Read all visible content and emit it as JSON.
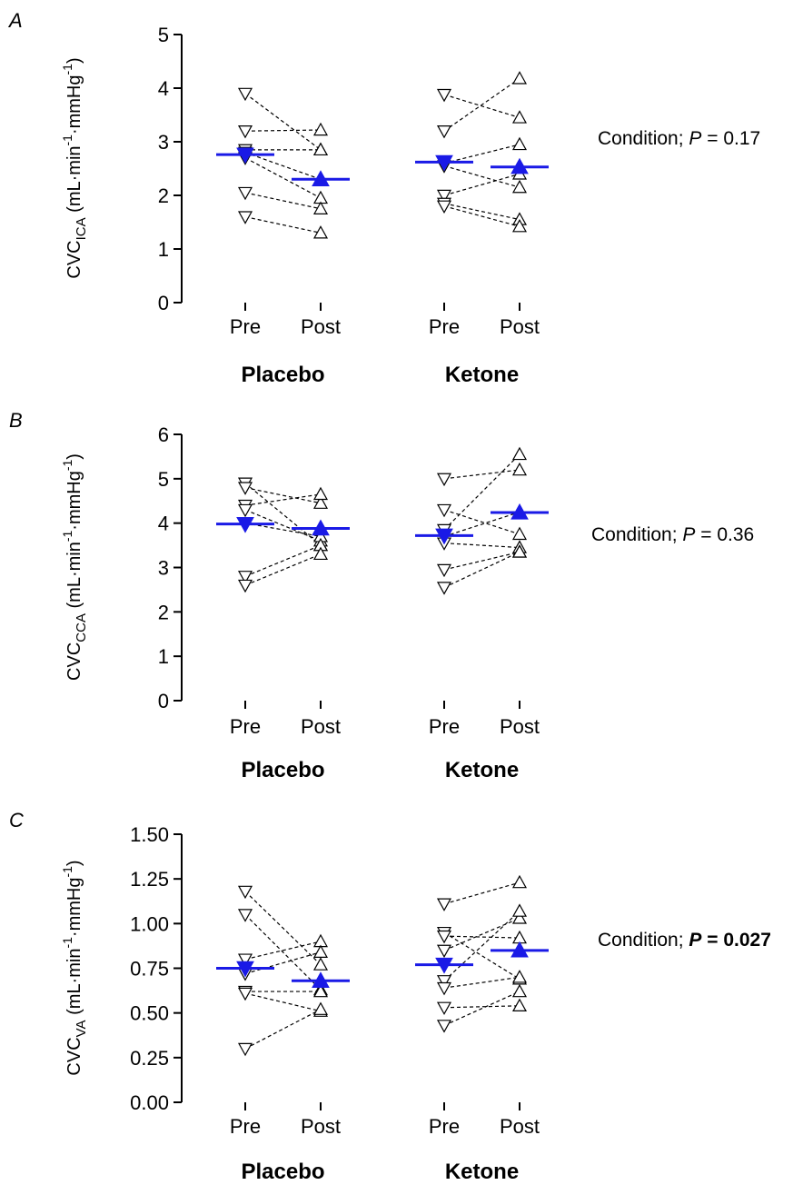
{
  "figure": {
    "panels": [
      {
        "letter": "A",
        "ylabel": {
          "main": "CVC",
          "sub": "ICA",
          "units": " (mL·min",
          "sup1": "-1",
          "mid": "·mmHg",
          "sup2": "-1",
          "close": ")"
        },
        "stat": {
          "prefix": "Condition; ",
          "p": "P",
          "rest": " = 0.17",
          "bold": false
        },
        "groups": [
          "Placebo",
          "Ketone"
        ],
        "x_ticks": [
          "Pre",
          "Post",
          "Pre",
          "Post"
        ],
        "y_ticks": [
          "0",
          "1",
          "2",
          "3",
          "4",
          "5"
        ]
      },
      {
        "letter": "B",
        "ylabel": {
          "main": "CVC",
          "sub": "CCA",
          "units": " (mL·min",
          "sup1": "-1",
          "mid": "·mmHg",
          "sup2": "-1",
          "close": ")"
        },
        "stat": {
          "prefix": "Condition; ",
          "p": "P",
          "rest": " = 0.36",
          "bold": false
        },
        "groups": [
          "Placebo",
          "Ketone"
        ],
        "x_ticks": [
          "Pre",
          "Post",
          "Pre",
          "Post"
        ],
        "y_ticks": [
          "0",
          "1",
          "2",
          "3",
          "4",
          "5",
          "6"
        ]
      },
      {
        "letter": "C",
        "ylabel": {
          "main": "CVC",
          "sub": "VA",
          "units": " (mL·min",
          "sup1": "-1",
          "mid": "·mmHg",
          "sup2": "-1",
          "close": ")"
        },
        "stat": {
          "prefix": "Condition; ",
          "p": "P",
          "rest": " = 0.027",
          "bold": true
        },
        "groups": [
          "Placebo",
          "Ketone"
        ],
        "x_ticks": [
          "Pre",
          "Post",
          "Pre",
          "Post"
        ],
        "y_ticks": [
          "0.00",
          "0.25",
          "0.50",
          "0.75",
          "1.00",
          "1.25",
          "1.50"
        ]
      }
    ]
  },
  "chart_data": [
    {
      "type": "scatter",
      "title": "",
      "ylabel": "CVCICA (mL·min-1·mmHg-1)",
      "ylim": [
        0,
        5
      ],
      "categories": [
        "Placebo Pre",
        "Placebo Post",
        "Ketone Pre",
        "Ketone Post"
      ],
      "colors": {
        "individual": "#000000",
        "mean": "#1a1ae6"
      },
      "individual_pairs": {
        "Placebo": [
          [
            3.9,
            2.85
          ],
          [
            3.2,
            3.22
          ],
          [
            2.85,
            2.85
          ],
          [
            2.8,
            2.3
          ],
          [
            2.7,
            1.95
          ],
          [
            2.05,
            1.75
          ],
          [
            1.6,
            1.3
          ]
        ],
        "Ketone": [
          [
            3.88,
            3.45
          ],
          [
            3.2,
            4.18
          ],
          [
            2.6,
            2.95
          ],
          [
            2.55,
            2.15
          ],
          [
            2.0,
            2.4
          ],
          [
            1.85,
            1.55
          ],
          [
            1.8,
            1.42
          ]
        ]
      },
      "means": {
        "Placebo": [
          2.76,
          2.3
        ],
        "Ketone": [
          2.62,
          2.53
        ]
      }
    },
    {
      "type": "scatter",
      "title": "",
      "ylabel": "CVCCCA (mL·min-1·mmHg-1)",
      "ylim": [
        0,
        6
      ],
      "categories": [
        "Placebo Pre",
        "Placebo Post",
        "Ketone Pre",
        "Ketone Post"
      ],
      "colors": {
        "individual": "#000000",
        "mean": "#1a1ae6"
      },
      "individual_pairs": {
        "Placebo": [
          [
            4.9,
            3.5
          ],
          [
            4.8,
            4.45
          ],
          [
            4.4,
            4.65
          ],
          [
            4.3,
            3.6
          ],
          [
            4.0,
            3.7
          ],
          [
            2.8,
            3.5
          ],
          [
            2.6,
            3.3
          ]
        ],
        "Ketone": [
          [
            5.0,
            5.2
          ],
          [
            4.3,
            3.75
          ],
          [
            3.85,
            5.55
          ],
          [
            3.7,
            4.25
          ],
          [
            3.55,
            3.45
          ],
          [
            2.95,
            3.35
          ],
          [
            2.55,
            3.35
          ]
        ]
      },
      "means": {
        "Placebo": [
          3.98,
          3.88
        ],
        "Ketone": [
          3.72,
          4.24
        ]
      }
    },
    {
      "type": "scatter",
      "title": "",
      "ylabel": "CVCVA (mL·min-1·mmHg-1)",
      "ylim": [
        0,
        1.5
      ],
      "categories": [
        "Placebo Pre",
        "Placebo Post",
        "Ketone Pre",
        "Ketone Post"
      ],
      "colors": {
        "individual": "#000000",
        "mean": "#1a1ae6"
      },
      "individual_pairs": {
        "Placebo": [
          [
            1.18,
            0.77
          ],
          [
            1.05,
            0.63
          ],
          [
            0.8,
            0.9
          ],
          [
            0.72,
            0.84
          ],
          [
            0.62,
            0.62
          ],
          [
            0.61,
            0.51
          ],
          [
            0.3,
            0.52
          ]
        ],
        "Ketone": [
          [
            1.11,
            1.23
          ],
          [
            0.95,
            0.69
          ],
          [
            0.93,
            0.92
          ],
          [
            0.85,
            1.03
          ],
          [
            0.68,
            1.07
          ],
          [
            0.64,
            0.7
          ],
          [
            0.53,
            0.54
          ],
          [
            0.43,
            0.62
          ]
        ]
      },
      "means": {
        "Placebo": [
          0.75,
          0.68
        ],
        "Ketone": [
          0.77,
          0.85
        ]
      }
    }
  ]
}
